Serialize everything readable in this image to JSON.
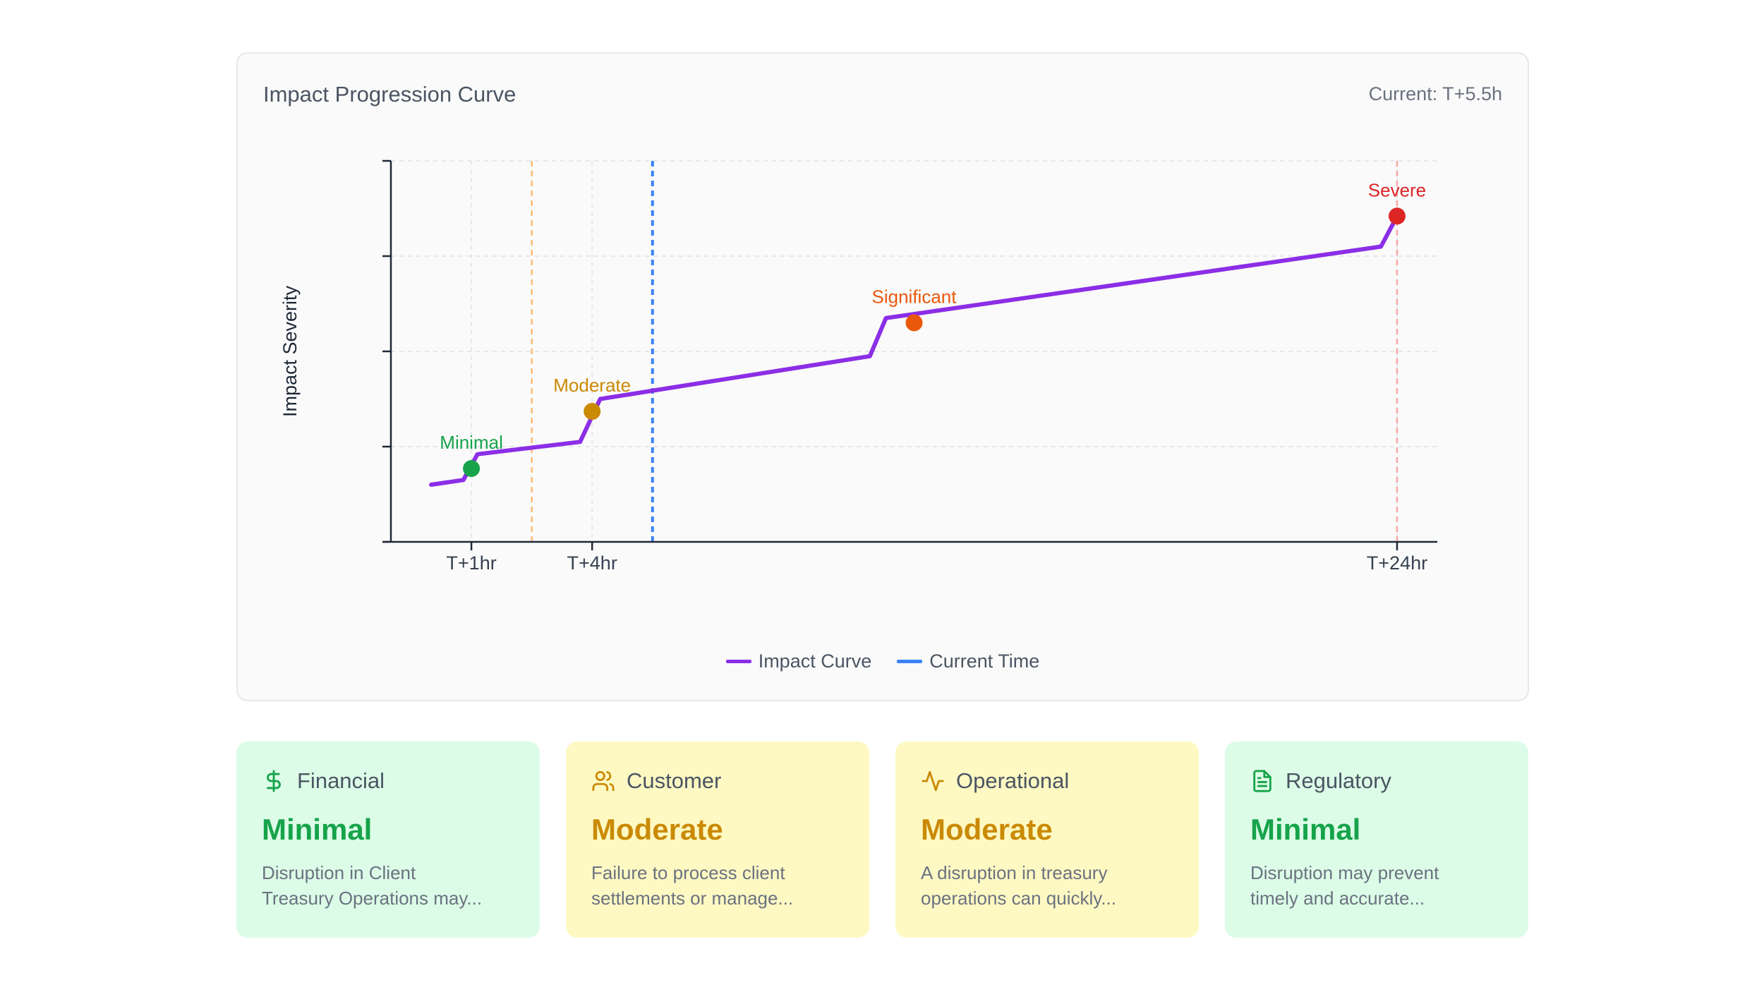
{
  "chart": {
    "title": "Impact Progression Curve",
    "current_label": "Current: T+5.5h",
    "legend": [
      {
        "label": "Impact Curve",
        "color": "#8b2ee6"
      },
      {
        "label": "Current Time",
        "color": "#3b82f6"
      }
    ]
  },
  "chart_data": {
    "type": "line",
    "title": "Impact Progression Curve",
    "xlabel": "",
    "ylabel": "Impact Severity",
    "xlim": [
      -1,
      25
    ],
    "ylim": [
      0,
      4
    ],
    "x_ticks": [
      {
        "x": 1,
        "label": "T+1hr"
      },
      {
        "x": 4,
        "label": "T+4hr"
      },
      {
        "x": 24,
        "label": "T+24hr"
      }
    ],
    "y_ticks": [
      0,
      1,
      2,
      3,
      4
    ],
    "grid": true,
    "series": [
      {
        "name": "Impact Curve",
        "color": "#8b2ee6",
        "points": [
          [
            0,
            0.6
          ],
          [
            0.8,
            0.65
          ],
          [
            1.15,
            0.92
          ],
          [
            3.7,
            1.05
          ],
          [
            4.2,
            1.5
          ],
          [
            10.9,
            1.95
          ],
          [
            11.3,
            2.35
          ],
          [
            23.6,
            3.1
          ],
          [
            24.0,
            3.42
          ]
        ]
      }
    ],
    "milestones": [
      {
        "label": "Minimal",
        "x": 1,
        "y": 0.77,
        "color": "#16a34a"
      },
      {
        "label": "Moderate",
        "x": 4,
        "y": 1.37,
        "color": "#ca8a04"
      },
      {
        "label": "Significant",
        "x": 12,
        "y": 2.3,
        "color": "#ea580c"
      },
      {
        "label": "Severe",
        "x": 24,
        "y": 3.42,
        "color": "#dc2626"
      }
    ],
    "threshold_lines": [
      {
        "x": 2.5,
        "color": "#fdba74"
      },
      {
        "x": 24,
        "color": "#fca5a5"
      }
    ],
    "current_time": 5.5
  },
  "cards": [
    {
      "icon": "dollar-icon",
      "label": "Financial",
      "level": "Minimal",
      "level_color": "#16a34a",
      "desc_line1": "Disruption in Client",
      "desc_line2": "Treasury Operations may..."
    },
    {
      "icon": "users-icon",
      "label": "Customer",
      "level": "Moderate",
      "level_color": "#ca8a04",
      "desc_line1": "Failure to process client",
      "desc_line2": "settlements or manage..."
    },
    {
      "icon": "activity-icon",
      "label": "Operational",
      "level": "Moderate",
      "level_color": "#ca8a04",
      "desc_line1": "A disruption in treasury",
      "desc_line2": "operations can quickly..."
    },
    {
      "icon": "document-icon",
      "label": "Regulatory",
      "level": "Minimal",
      "level_color": "#16a34a",
      "desc_line1": "Disruption may prevent",
      "desc_line2": "timely and accurate..."
    }
  ]
}
